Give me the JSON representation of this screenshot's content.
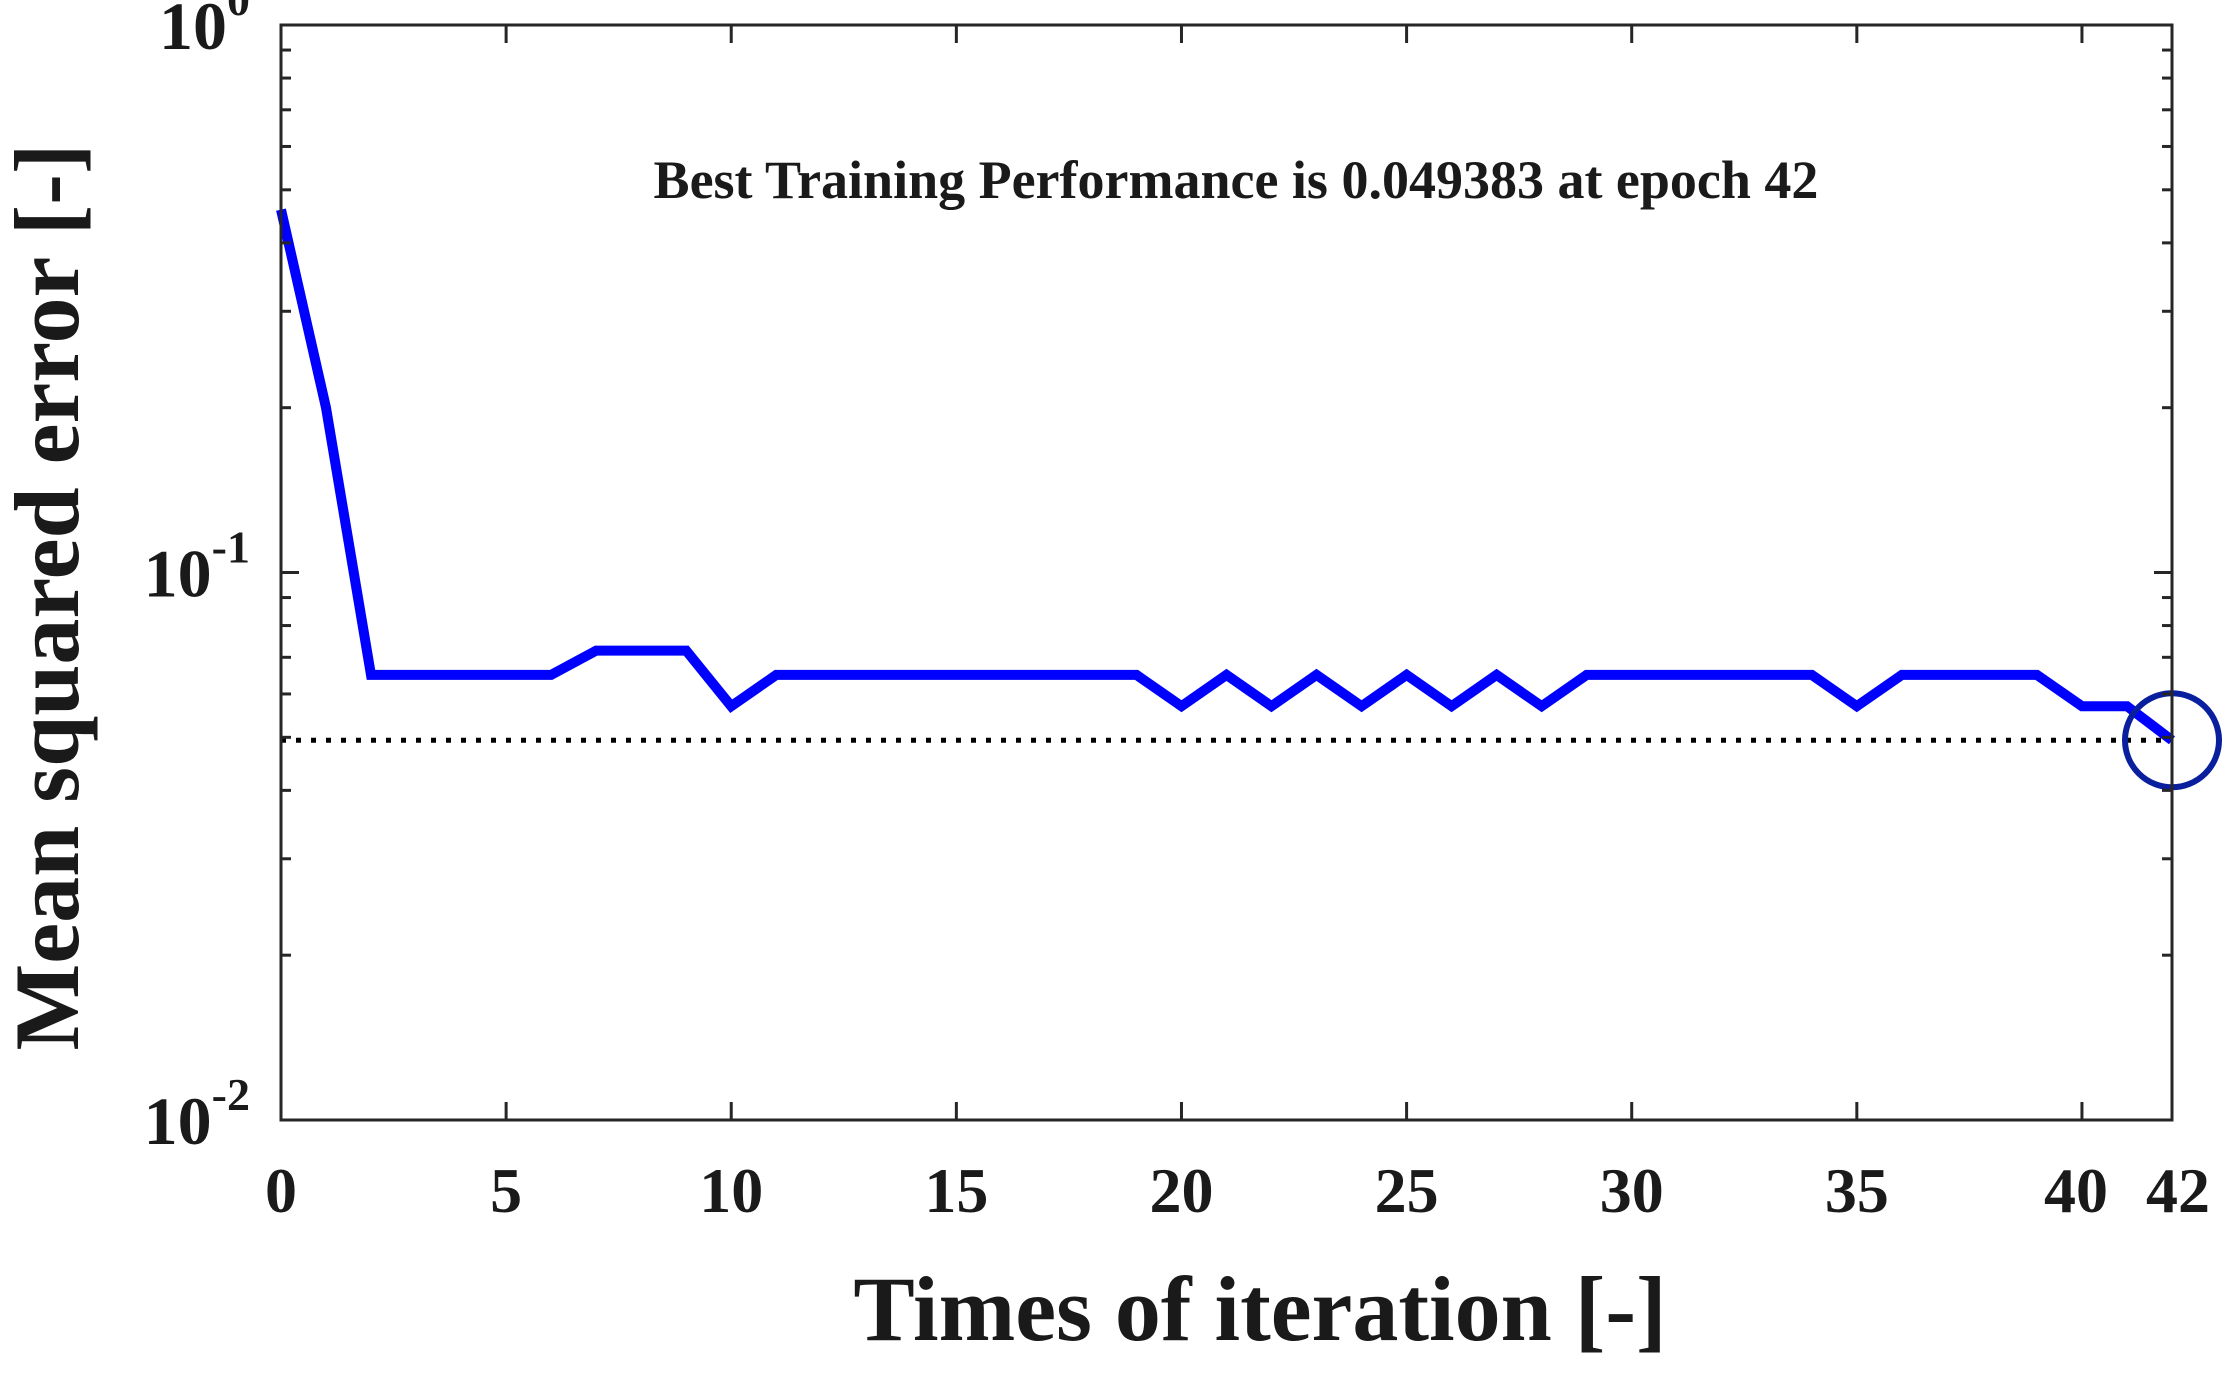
{
  "chart_data": {
    "type": "line",
    "title": "",
    "annotation": "Best Training Performance is 0.049383 at epoch 42",
    "xlabel": "Times of iteration [-]",
    "ylabel": "Mean squared error [-]",
    "xlim": [
      0,
      42
    ],
    "ylim": [
      0.01,
      1
    ],
    "yscale": "log",
    "grid": false,
    "legend": "none",
    "x_ticks": [
      0,
      5,
      10,
      15,
      20,
      25,
      30,
      35,
      40,
      42
    ],
    "x_tick_labels": [
      "0",
      "5",
      "10",
      "15",
      "20",
      "25",
      "30",
      "35",
      "40",
      "42"
    ],
    "y_ticks": [
      {
        "value": 1,
        "base": "10",
        "exp": "0"
      },
      {
        "value": 0.1,
        "base": "10",
        "exp": "-1"
      },
      {
        "value": 0.01,
        "base": "10",
        "exp": "-2"
      }
    ],
    "series": [
      {
        "color": "#0000ff",
        "x": [
          0,
          1,
          2,
          3,
          4,
          5,
          6,
          7,
          8,
          9,
          10,
          11,
          12,
          13,
          14,
          15,
          16,
          17,
          18,
          19,
          20,
          21,
          22,
          23,
          24,
          25,
          26,
          27,
          28,
          29,
          30,
          31,
          32,
          33,
          34,
          35,
          36,
          37,
          38,
          39,
          40,
          41,
          42
        ],
        "y": [
          0.46,
          0.2,
          0.065,
          0.065,
          0.065,
          0.065,
          0.065,
          0.072,
          0.072,
          0.072,
          0.057,
          0.065,
          0.065,
          0.065,
          0.065,
          0.065,
          0.065,
          0.065,
          0.065,
          0.065,
          0.057,
          0.065,
          0.057,
          0.065,
          0.057,
          0.065,
          0.057,
          0.065,
          0.057,
          0.065,
          0.065,
          0.065,
          0.065,
          0.065,
          0.065,
          0.057,
          0.065,
          0.065,
          0.065,
          0.065,
          0.057,
          0.057,
          0.049383
        ]
      }
    ],
    "goal_line": {
      "y": 0.049383,
      "color": "#000000"
    },
    "best_point": {
      "x": 42,
      "y": 0.049383,
      "color": "#0a1f9e"
    }
  }
}
